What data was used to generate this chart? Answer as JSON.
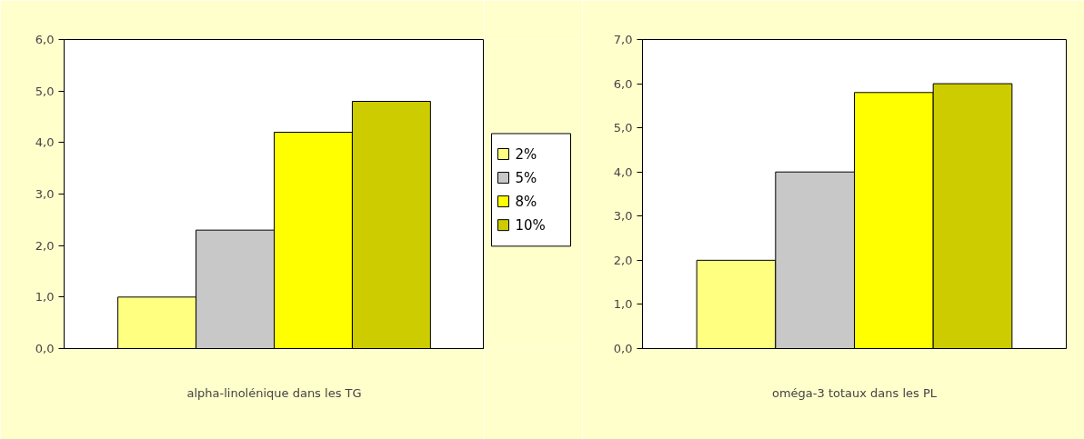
{
  "chart_data": [
    {
      "type": "bar",
      "categories": [
        null
      ],
      "xlabel": "alpha-linolénique dans les TG",
      "series": [
        {
          "name": "2%",
          "color": "#ffff80",
          "values": [
            1.0
          ]
        },
        {
          "name": "5%",
          "color": "#c8c8c8",
          "values": [
            2.3
          ]
        },
        {
          "name": "8%",
          "color": "#ffff00",
          "values": [
            4.2
          ]
        },
        {
          "name": "10%",
          "color": "#cccc00",
          "values": [
            4.8
          ]
        }
      ],
      "ylim": [
        0,
        6
      ],
      "yticks": [
        {
          "value": 0,
          "label": "0,0"
        },
        {
          "value": 1,
          "label": "1,0"
        },
        {
          "value": 2,
          "label": "2,0"
        },
        {
          "value": 3,
          "label": "3,0"
        },
        {
          "value": 4,
          "label": "4,0"
        },
        {
          "value": 5,
          "label": "5,0"
        },
        {
          "value": 6,
          "label": "6,0"
        }
      ],
      "grid": false,
      "legend": "right"
    },
    {
      "type": "bar",
      "categories": [
        null
      ],
      "xlabel": "oméga-3 totaux dans les PL",
      "series": [
        {
          "color": "#ffff80",
          "values": [
            2.0
          ]
        },
        {
          "color": "#c8c8c8",
          "values": [
            4.0
          ]
        },
        {
          "color": "#ffff00",
          "values": [
            5.8
          ]
        },
        {
          "color": "#cccc00",
          "values": [
            6.0
          ]
        }
      ],
      "ylim": [
        0,
        7
      ],
      "yticks": [
        {
          "value": 0,
          "label": "0,0"
        },
        {
          "value": 1,
          "label": "1,0"
        },
        {
          "value": 2,
          "label": "2,0"
        },
        {
          "value": 3,
          "label": "3,0"
        },
        {
          "value": 4,
          "label": "4,0"
        },
        {
          "value": 5,
          "label": "5,0"
        },
        {
          "value": 6,
          "label": "6,0"
        },
        {
          "value": 7,
          "label": "7,0"
        }
      ],
      "grid": false
    }
  ]
}
